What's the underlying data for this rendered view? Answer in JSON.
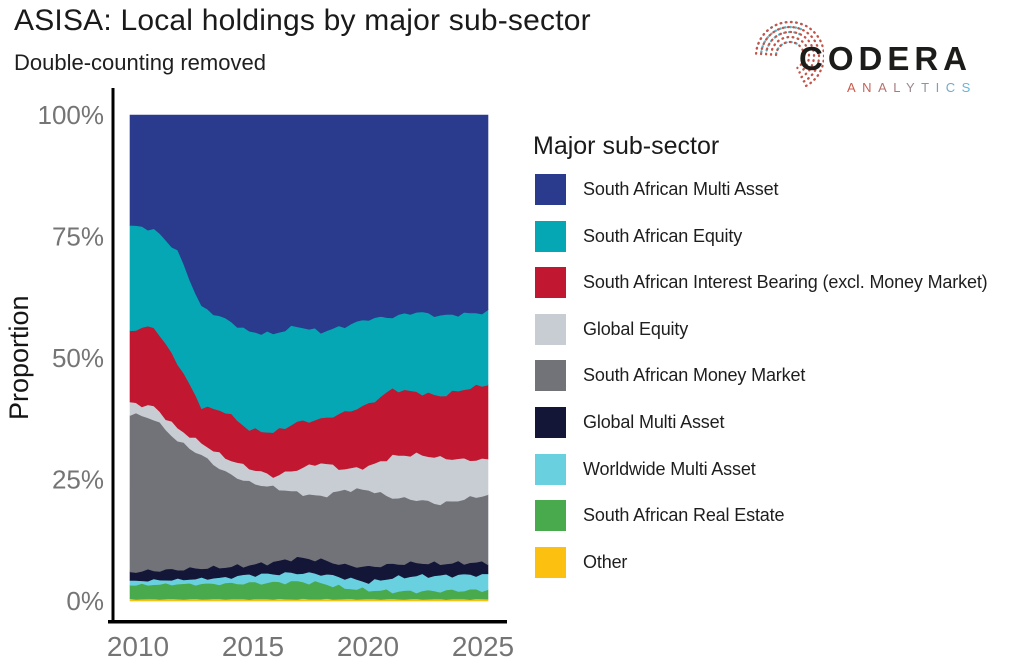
{
  "logo": {
    "brand": "CODERA",
    "tagline": "ANALYTICS"
  },
  "chart_data": {
    "type": "area",
    "stacked": true,
    "normalized_percent": true,
    "title": "ASISA: Local holdings by major sub-sector",
    "subtitle": "Double-counting removed",
    "ylabel": "Proportion",
    "legend_title": "Major sub-sector",
    "legend_position": "right",
    "grid": false,
    "ylim": [
      0,
      100
    ],
    "y_ticks": [
      {
        "label": "0%",
        "value": 0
      },
      {
        "label": "25%",
        "value": 25
      },
      {
        "label": "50%",
        "value": 50
      },
      {
        "label": "75%",
        "value": 75
      },
      {
        "label": "100%",
        "value": 100
      }
    ],
    "x_ticks": [
      {
        "label": "2010",
        "year": 2010
      },
      {
        "label": "2015",
        "year": 2015
      },
      {
        "label": "2020",
        "year": 2020
      },
      {
        "label": "2025",
        "year": 2025
      }
    ],
    "years": [
      2010,
      2011,
      2012,
      2013,
      2014,
      2015,
      2016,
      2017,
      2018,
      2019,
      2020,
      2021,
      2022,
      2023,
      2024,
      2025
    ],
    "series": [
      {
        "name": "South African Multi Asset",
        "color": "#2A3A8C",
        "values": [
          22.7,
          23.5,
          28.0,
          39.5,
          42.0,
          44.6,
          45.0,
          43.4,
          44.6,
          43.4,
          41.9,
          41.5,
          40.5,
          41.3,
          40.9,
          40.5
        ]
      },
      {
        "name": "South African Equity",
        "color": "#05A7B4",
        "values": [
          21.6,
          20.0,
          23.0,
          20.5,
          19.0,
          20.1,
          20.3,
          19.8,
          18.0,
          17.8,
          17.6,
          14.9,
          16.5,
          16.5,
          15.5,
          14.9
        ]
      },
      {
        "name": "South African Interest Bearing (excl. Money Market)",
        "color": "#C11730",
        "values": [
          14.9,
          16.5,
          13.5,
          7.5,
          9.5,
          7.9,
          9.0,
          9.7,
          8.9,
          11.7,
          12.8,
          13.8,
          12.8,
          12.7,
          14.5,
          15.5
        ]
      },
      {
        "name": "Global Equity",
        "color": "#C8CDD3",
        "values": [
          2.2,
          2.5,
          2.5,
          2.5,
          3.0,
          3.0,
          2.3,
          4.8,
          7.0,
          4.2,
          4.8,
          8.5,
          9.3,
          9.5,
          8.1,
          7.2
        ]
      },
      {
        "name": "South African Money Market",
        "color": "#727379",
        "values": [
          32.6,
          31.2,
          26.5,
          23.2,
          19.5,
          17.0,
          15.4,
          13.4,
          13.0,
          15.5,
          15.9,
          13.7,
          13.0,
          12.3,
          13.1,
          14.0
        ]
      },
      {
        "name": "Global Multi Asset",
        "color": "#141638",
        "values": [
          1.9,
          2.0,
          2.1,
          2.2,
          2.2,
          2.0,
          2.4,
          3.1,
          2.9,
          2.6,
          3.1,
          2.8,
          2.7,
          2.5,
          2.5,
          2.5
        ]
      },
      {
        "name": "Worldwide Multi Asset",
        "color": "#69D0E0",
        "values": [
          0.8,
          0.9,
          0.9,
          1.1,
          1.2,
          1.7,
          1.8,
          1.8,
          1.9,
          2.1,
          1.6,
          2.8,
          3.2,
          3.1,
          3.2,
          3.1
        ]
      },
      {
        "name": "South African Real Estate",
        "color": "#49A94D",
        "values": [
          2.9,
          3.0,
          3.1,
          3.1,
          3.2,
          3.3,
          3.4,
          3.6,
          3.3,
          2.3,
          1.9,
          1.6,
          1.6,
          1.7,
          1.8,
          1.9
        ]
      },
      {
        "name": "Other",
        "color": "#FCC011",
        "values": [
          0.4,
          0.4,
          0.4,
          0.4,
          0.4,
          0.4,
          0.4,
          0.4,
          0.4,
          0.4,
          0.4,
          0.4,
          0.4,
          0.4,
          0.4,
          0.4
        ]
      }
    ]
  }
}
